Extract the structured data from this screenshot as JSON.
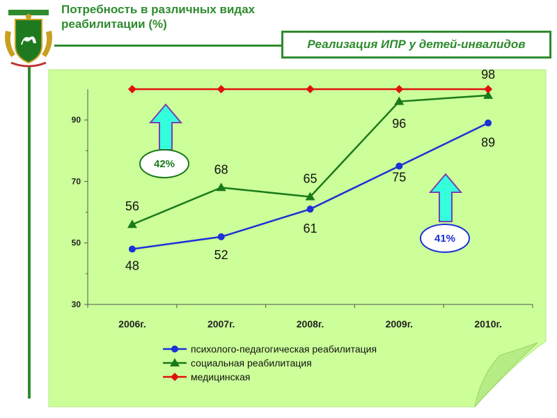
{
  "header": {
    "title_line1": "Потребность в различных видах",
    "title_line2": "реабилитации (%)",
    "subtitle": "Реализация ИПР у детей-инвалидов"
  },
  "icons": {
    "emblem": "coat-of-arms-icon",
    "arrow": "up-arrow-icon"
  },
  "colors": {
    "green": "#2e8b2e",
    "paper": "#ccff99",
    "blue": "#1c31d6",
    "red": "#e01010",
    "arrow_fill": "#33ffdd"
  },
  "annotations": [
    {
      "text": "42%",
      "color": "#1a7a1a",
      "position": "above-2007"
    },
    {
      "text": "41%",
      "color": "#1c31d6",
      "position": "below-2009"
    }
  ],
  "chart_data": {
    "type": "line",
    "categories": [
      "2006г.",
      "2007г.",
      "2008г.",
      "2009г.",
      "2010г."
    ],
    "ylim": [
      30,
      100
    ],
    "yticks": [
      30,
      50,
      70,
      90
    ],
    "title": "",
    "xlabel": "",
    "ylabel": "",
    "legend_position": "bottom",
    "series": [
      {
        "name": "психолого-педагогическая реабилитация",
        "marker": "circle",
        "color": "#1c31d6",
        "values": [
          48,
          52,
          61,
          75,
          89
        ],
        "labels": [
          "48",
          "52",
          "61",
          "75",
          "89"
        ]
      },
      {
        "name": "социальная реабилитация",
        "marker": "triangle",
        "color": "#1a7a1a",
        "values": [
          56,
          68,
          65,
          96,
          98
        ],
        "labels": [
          "56",
          "68",
          "65",
          "96",
          "98"
        ]
      },
      {
        "name": "медицинская",
        "marker": "diamond",
        "color": "#e01010",
        "values": [
          100,
          100,
          100,
          100,
          100
        ],
        "labels": []
      }
    ]
  }
}
